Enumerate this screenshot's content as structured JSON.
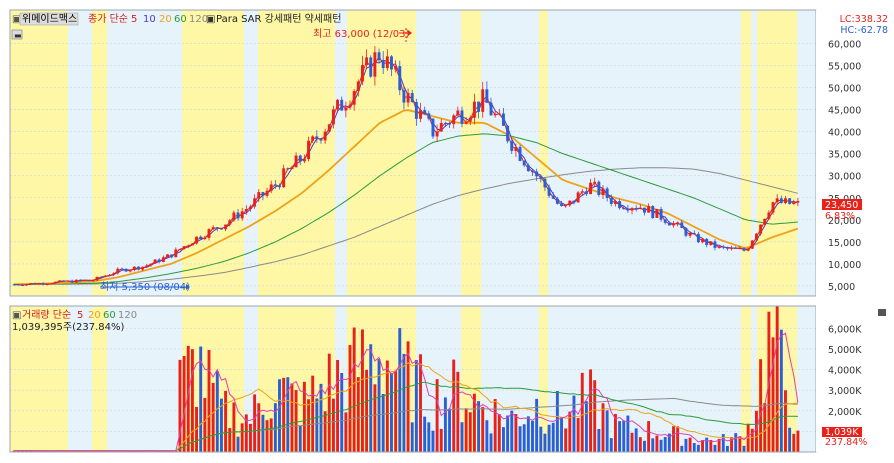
{
  "legend": {
    "marker": "▣",
    "symbol": "위메이드맥스",
    "price_label": "종가 단순",
    "ma_periods": [
      "5",
      "10",
      "20",
      "60",
      "120"
    ],
    "sar_label": "Para SAR 강세패턴 약세패턴",
    "lc": "LC:338.32",
    "hc": "HC:-62.78"
  },
  "volume_legend": {
    "label": "거래량 단순",
    "ma_periods": [
      "5",
      "20",
      "60",
      "120"
    ],
    "current": "1,039,395주(237.84%)"
  },
  "annotations": {
    "high": "최고 63,000 (12/03)",
    "low": "최저 5,350 (08/04)"
  },
  "price_tags": {
    "last": "23,450",
    "change": "6.83%"
  },
  "volume_tags": {
    "last": "1,039K",
    "change": "237.84%"
  },
  "colors": {
    "up": "#e8221a",
    "down": "#2a5fd6",
    "bg_light_blue": "#e6f3fb",
    "bg_yellow": "#fdf7a6",
    "ma5": "#e8221a",
    "ma10": "#4b3bc9",
    "ma20": "#eea21a",
    "ma60": "#2a9b3a",
    "ma120": "#8a8a8a",
    "vol_ma5": "#e040b0",
    "axis_text": "#333333"
  },
  "chart_data": [
    {
      "type": "candlestick",
      "title": "",
      "series": [
        {
          "name": "종가"
        },
        {
          "name": "5"
        },
        {
          "name": "10"
        },
        {
          "name": "20"
        },
        {
          "name": "60"
        },
        {
          "name": "120"
        }
      ],
      "ylim": [
        0,
        63000
      ],
      "y_ticks": [
        "5,000",
        "10,000",
        "15,000",
        "20,000",
        "25,000",
        "30,000",
        "35,000",
        "40,000",
        "45,000",
        "50,000",
        "55,000",
        "60,000"
      ],
      "close_approx": [
        5350,
        5600,
        6000,
        6300,
        8500,
        9500,
        12000,
        16000,
        19000,
        23000,
        28000,
        34000,
        42000,
        50000,
        58000,
        48000,
        40000,
        44000,
        47000,
        38000,
        30000,
        22000,
        28000,
        24000,
        23000,
        20000,
        16000,
        13500,
        13000,
        24000,
        23450
      ],
      "ma20_approx": [
        5400,
        5500,
        5700,
        6000,
        7000,
        8500,
        10000,
        12500,
        15500,
        18500,
        22000,
        26000,
        31000,
        36500,
        42000,
        45000,
        43500,
        42000,
        42000,
        39000,
        34000,
        29000,
        27000,
        25000,
        23500,
        21500,
        18500,
        15500,
        13500,
        16000,
        18000
      ],
      "ma60_approx": [
        5300,
        5400,
        5500,
        5600,
        6000,
        6800,
        7800,
        9000,
        10500,
        12500,
        15000,
        18000,
        21500,
        25500,
        30000,
        34000,
        37500,
        39000,
        39500,
        39000,
        37500,
        35000,
        33000,
        31000,
        29000,
        27000,
        25000,
        22500,
        20000,
        19000,
        19500
      ],
      "ma120_approx": [
        5300,
        5350,
        5400,
        5450,
        5600,
        6000,
        6500,
        7200,
        8000,
        9200,
        10500,
        12000,
        14000,
        16000,
        18500,
        21000,
        23500,
        25500,
        27000,
        28300,
        29300,
        30200,
        31000,
        31500,
        31800,
        31800,
        31500,
        30500,
        29000,
        27500,
        26000
      ],
      "high": {
        "value": 63000,
        "date": "12/03"
      },
      "low": {
        "value": 5350,
        "date": "08/04"
      },
      "last": 23450,
      "change_pct": 6.83
    },
    {
      "type": "bar",
      "title": "",
      "series": [
        {
          "name": "거래량"
        },
        {
          "name": "5"
        },
        {
          "name": "20"
        },
        {
          "name": "60"
        },
        {
          "name": "120"
        }
      ],
      "ylim": [
        0,
        6500
      ],
      "y_ticks": [
        "1,000K",
        "2,000K",
        "3,000K",
        "4,000K",
        "5,000K",
        "6,000K"
      ],
      "volume_approx_k": [
        40,
        60,
        30,
        50,
        40,
        80,
        3000,
        4800,
        2200,
        1800,
        3500,
        2500,
        3700,
        4400,
        5400,
        4000,
        2800,
        3300,
        2400,
        1800,
        2500,
        2000,
        2900,
        1400,
        1200,
        1000,
        700,
        600,
        800,
        6500,
        1039
      ],
      "last": "1,039K",
      "change_pct": 237.84
    }
  ]
}
